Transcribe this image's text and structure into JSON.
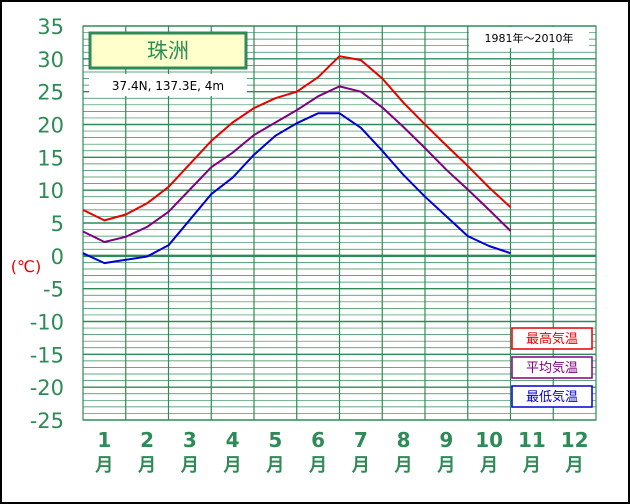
{
  "chart_data": {
    "type": "line",
    "title": "珠洲",
    "subtitle": "37.4N,  137.3E,  4m",
    "period": "1981年〜2010年",
    "ylabel": "(℃)",
    "ylim": [
      -25,
      35
    ],
    "yticks": [
      35,
      30,
      25,
      20,
      15,
      10,
      5,
      0,
      -5,
      -10,
      -15,
      -20,
      -25
    ],
    "xlim": [
      0,
      12
    ],
    "month_labels": [
      "1",
      "2",
      "3",
      "4",
      "5",
      "6",
      "7",
      "8",
      "9",
      "10",
      "11",
      "12"
    ],
    "month_suffix": "月",
    "grid": true,
    "legend_position": "bottom-right",
    "x": [
      0.0,
      0.5,
      1.0,
      1.5,
      2.0,
      2.5,
      3.0,
      3.5,
      4.0,
      4.5,
      5.0,
      5.5,
      6.0,
      6.5,
      7.0,
      7.5,
      8.0,
      8.5,
      9.0,
      9.5,
      10.0,
      10.5,
      11.0,
      11.5,
      12.0
    ],
    "series": [
      {
        "name": "最高気温",
        "color": "#e60000",
        "values": [
          7.0,
          5.4,
          6.3,
          8.0,
          10.5,
          14.0,
          17.5,
          20.3,
          22.5,
          24.0,
          25.0,
          27.2,
          30.4,
          29.8,
          27.0,
          23.3,
          20.0,
          16.8,
          13.7,
          10.4,
          7.4,
          null,
          null,
          null,
          null
        ]
      },
      {
        "name": "平均気温",
        "color": "#800080",
        "values": [
          3.7,
          2.1,
          2.9,
          4.4,
          6.7,
          10.1,
          13.5,
          15.7,
          18.4,
          20.3,
          22.2,
          24.3,
          25.8,
          25.0,
          22.6,
          19.6,
          16.4,
          13.1,
          10.1,
          7.0,
          3.8,
          null,
          null,
          null,
          null
        ]
      },
      {
        "name": "最低気温",
        "color": "#0000d0",
        "values": [
          0.4,
          -1.1,
          -0.6,
          -0.1,
          1.6,
          5.5,
          9.4,
          11.9,
          15.4,
          18.3,
          20.2,
          21.7,
          21.7,
          19.5,
          16.0,
          12.3,
          9.0,
          6.0,
          3.0,
          1.5,
          0.4,
          null,
          null,
          null,
          null
        ]
      }
    ]
  }
}
